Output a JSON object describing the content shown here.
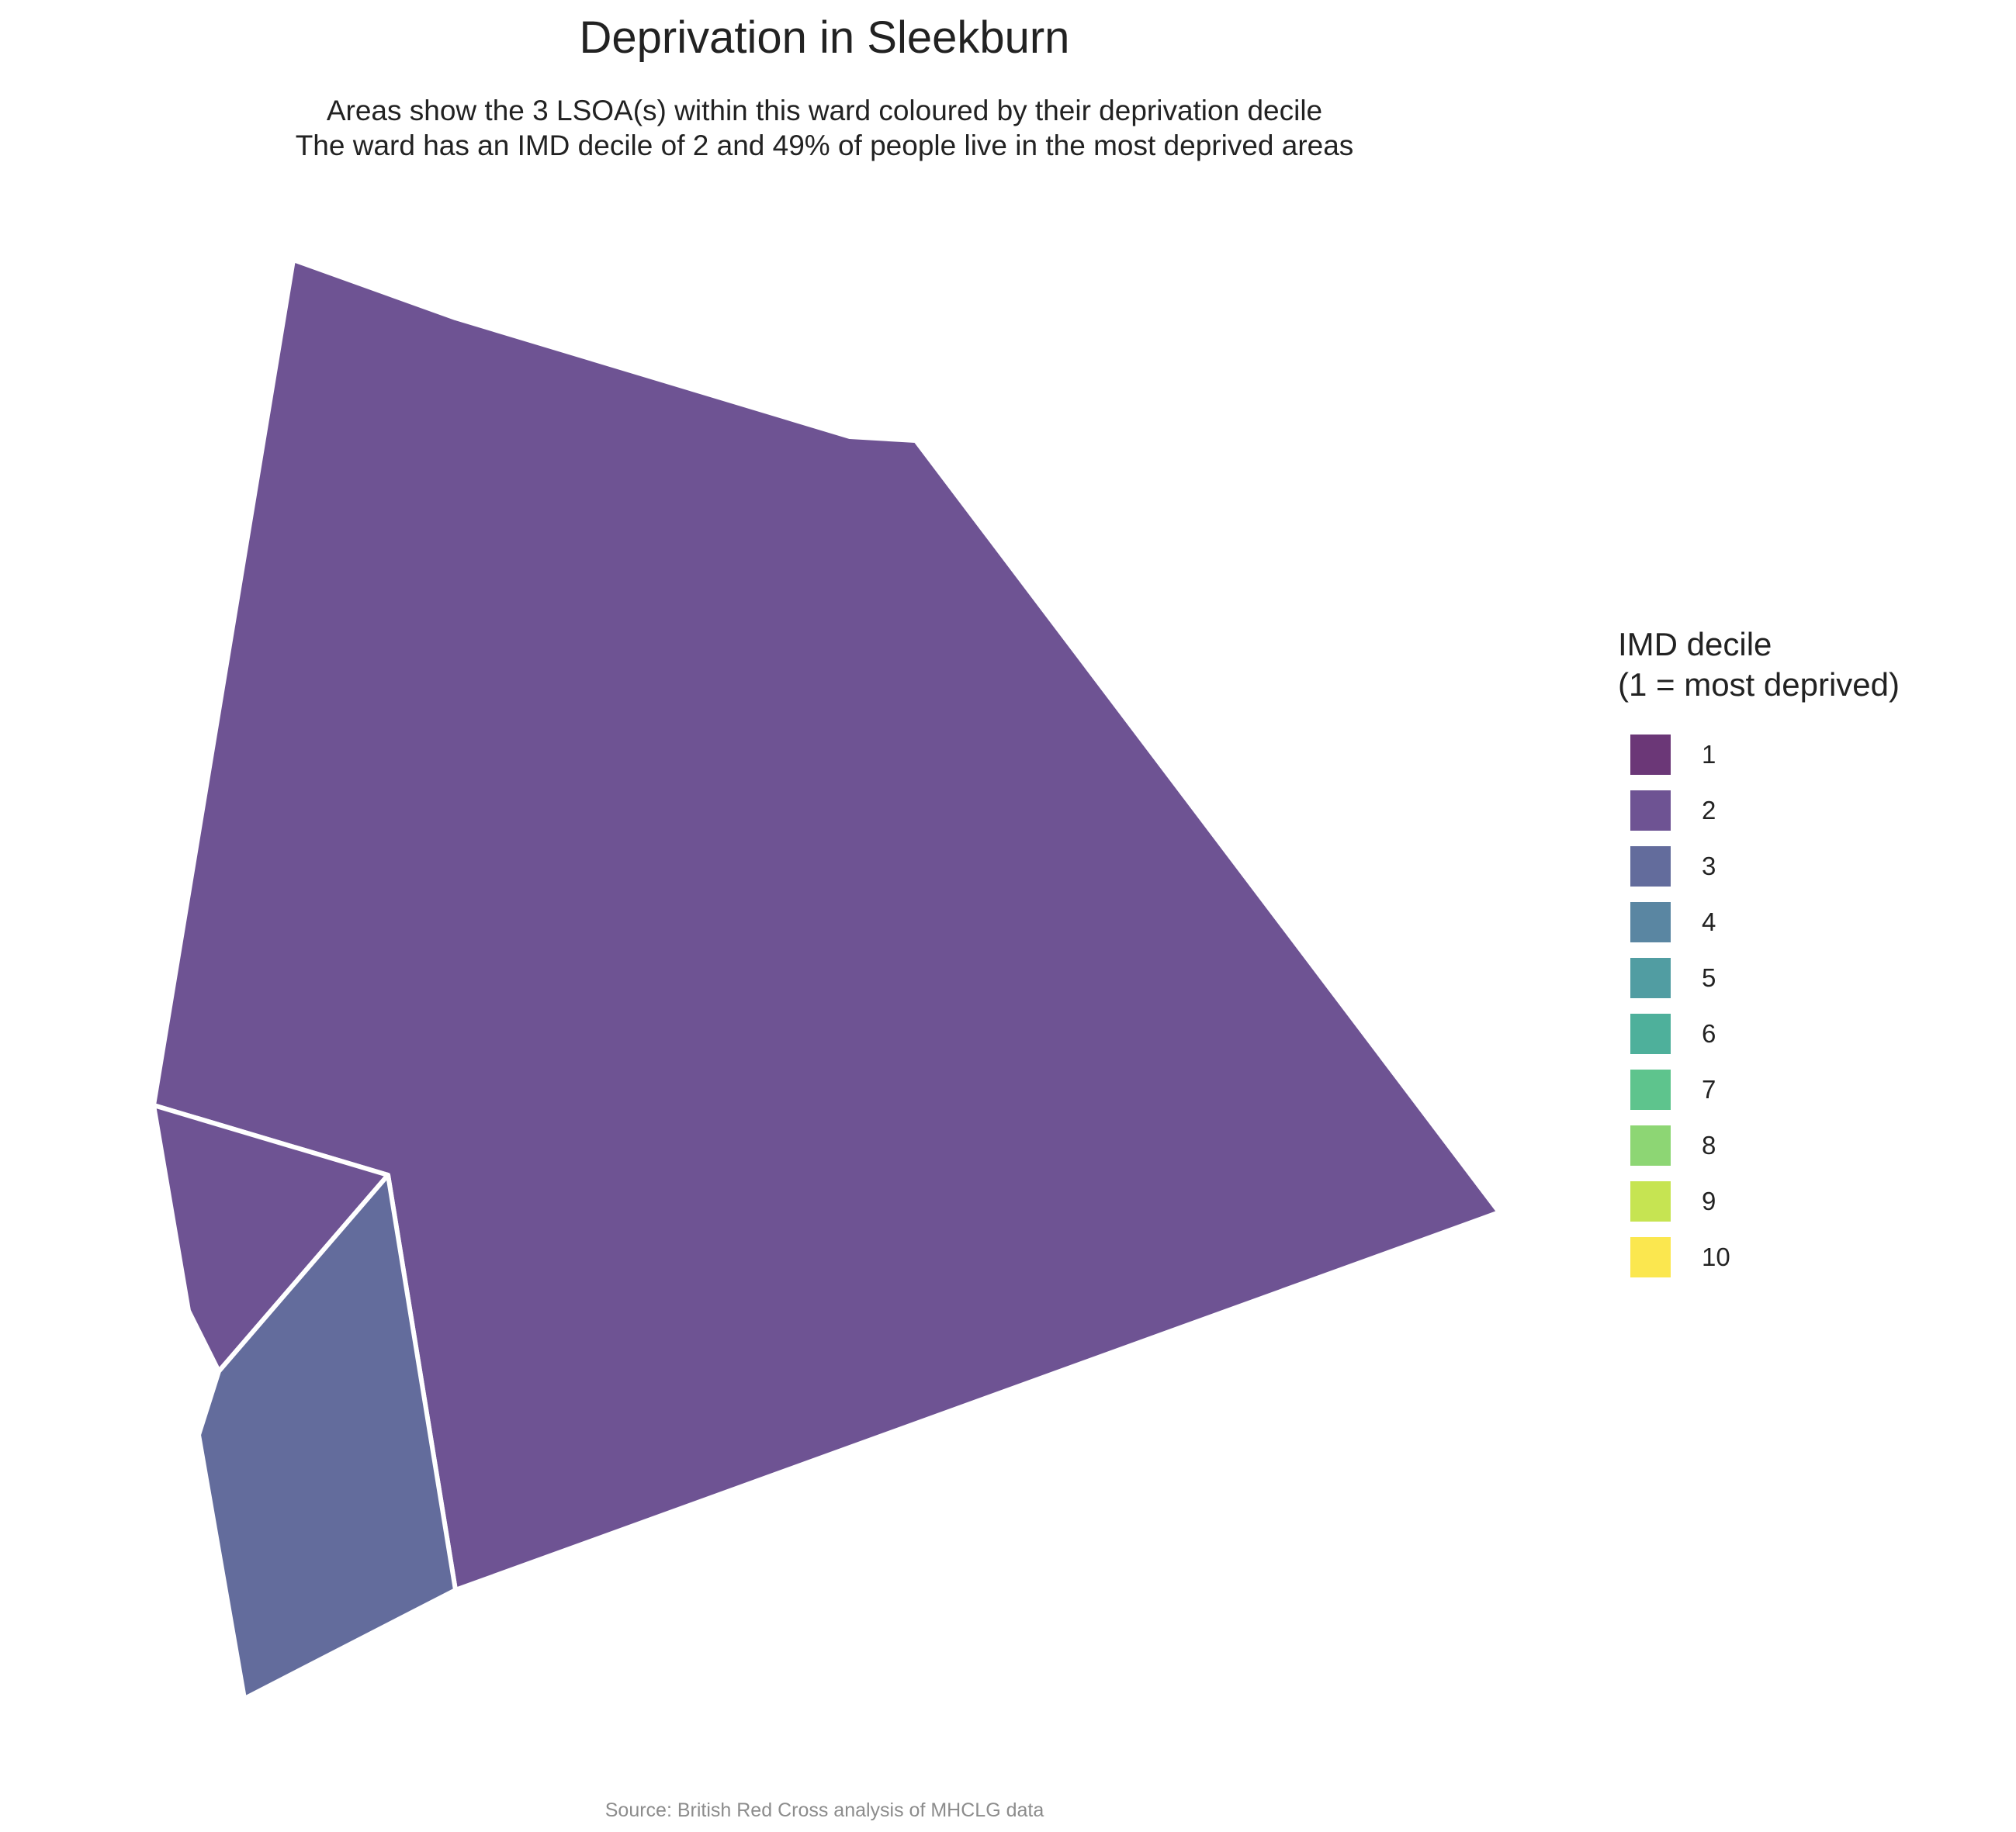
{
  "title": "Deprivation in Sleekburn",
  "subtitle": {
    "line1": "Areas show the 3 LSOA(s) within this ward coloured by their deprivation decile",
    "line2": "The ward has an IMD decile of 2 and 49% of people live in the most deprived areas"
  },
  "legend": {
    "title_line1": "IMD decile",
    "title_line2": "(1 = most deprived)",
    "items": [
      {
        "label": "1",
        "color": "#6B3777"
      },
      {
        "label": "2",
        "color": "#6E5393"
      },
      {
        "label": "3",
        "color": "#636C9C"
      },
      {
        "label": "4",
        "color": "#5A86A2"
      },
      {
        "label": "5",
        "color": "#519DA2"
      },
      {
        "label": "6",
        "color": "#4EB09B"
      },
      {
        "label": "7",
        "color": "#5EC48D"
      },
      {
        "label": "8",
        "color": "#8DD674"
      },
      {
        "label": "9",
        "color": "#C6E452"
      },
      {
        "label": "10",
        "color": "#FBE74F"
      }
    ]
  },
  "map": {
    "areas": [
      {
        "name": "lsoa-large",
        "decile": 2,
        "color": "#6E5393"
      },
      {
        "name": "lsoa-small-west",
        "decile": 2,
        "color": "#6E5393"
      },
      {
        "name": "lsoa-south-west",
        "decile": 3,
        "color": "#636C9C"
      }
    ],
    "border_color": "#ffffff"
  },
  "caption": "Source: British Red Cross analysis of MHCLG data"
}
